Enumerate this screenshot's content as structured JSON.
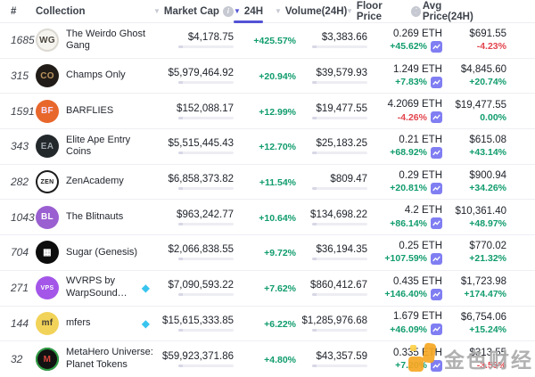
{
  "colors": {
    "positive": "#109c6d",
    "negative": "#e2444d",
    "accent": "#5352d6",
    "spark_background": "#807ef2"
  },
  "table": {
    "columns": [
      {
        "key": "rank",
        "label": "#",
        "sortable": false,
        "info": false,
        "active": false
      },
      {
        "key": "collection",
        "label": "Collection",
        "sortable": false,
        "info": false,
        "active": false
      },
      {
        "key": "market_cap",
        "label": "Market Cap",
        "sortable": true,
        "info": true,
        "active": false
      },
      {
        "key": "h24",
        "label": "24H",
        "sortable": true,
        "info": false,
        "active": true
      },
      {
        "key": "volume",
        "label": "Volume(24H)",
        "sortable": true,
        "info": false,
        "active": false
      },
      {
        "key": "floor",
        "label": "Floor Price",
        "sortable": true,
        "info": true,
        "active": false
      },
      {
        "key": "avg",
        "label": "Avg Price(24H)",
        "sortable": true,
        "info": false,
        "active": false
      }
    ],
    "rows": [
      {
        "rank": "1685",
        "name": "The Weirdo Ghost Gang",
        "diamond": false,
        "icon": {
          "text": "WG",
          "bg": "#f6f4ef",
          "fg": "#4a463f",
          "border": "#dcd9d2",
          "small": false
        },
        "market_cap": "$4,178.75",
        "change_24h": "+425.57%",
        "volume": "$3,383.66",
        "floor_price": "0.269 ETH",
        "floor_change": "+45.62%",
        "avg_price": "$691.55",
        "avg_change": "-4.23%"
      },
      {
        "rank": "315",
        "name": "Champs Only",
        "diamond": false,
        "icon": {
          "text": "CO",
          "bg": "#211c17",
          "fg": "#bb9560",
          "border": "",
          "small": false
        },
        "market_cap": "$5,979,464.92",
        "change_24h": "+20.94%",
        "volume": "$39,579.93",
        "floor_price": "1.249 ETH",
        "floor_change": "+7.83%",
        "avg_price": "$4,845.60",
        "avg_change": "+20.74%"
      },
      {
        "rank": "1591",
        "name": "BARFLIES",
        "diamond": false,
        "icon": {
          "text": "BF",
          "bg": "#e8672c",
          "fg": "#f4e2ff",
          "border": "",
          "small": false
        },
        "market_cap": "$152,088.17",
        "change_24h": "+12.99%",
        "volume": "$19,477.55",
        "floor_price": "4.2069 ETH",
        "floor_change": "-4.26%",
        "avg_price": "$19,477.55",
        "avg_change": "0.00%"
      },
      {
        "rank": "343",
        "name": "Elite Ape Entry Coins",
        "diamond": false,
        "icon": {
          "text": "EA",
          "bg": "#23282b",
          "fg": "#9fa8ad",
          "border": "",
          "small": false
        },
        "market_cap": "$5,515,445.43",
        "change_24h": "+12.70%",
        "volume": "$25,183.25",
        "floor_price": "0.21 ETH",
        "floor_change": "+68.92%",
        "avg_price": "$615.08",
        "avg_change": "+43.14%"
      },
      {
        "rank": "282",
        "name": "ZenAcademy",
        "diamond": false,
        "icon": {
          "text": "ZEN",
          "bg": "#ffffff",
          "fg": "#1c1c1c",
          "border": "#1c1c1c",
          "small": true
        },
        "market_cap": "$6,858,373.82",
        "change_24h": "+11.54%",
        "volume": "$809.47",
        "floor_price": "0.29 ETH",
        "floor_change": "+20.81%",
        "avg_price": "$900.94",
        "avg_change": "+34.26%"
      },
      {
        "rank": "1043",
        "name": "The Blitnauts",
        "diamond": false,
        "icon": {
          "text": "BL",
          "bg": "#9a5fd0",
          "fg": "#ffffff",
          "border": "",
          "small": false
        },
        "market_cap": "$963,242.77",
        "change_24h": "+10.64%",
        "volume": "$134,698.22",
        "floor_price": "4.2 ETH",
        "floor_change": "+86.14%",
        "avg_price": "$10,361.40",
        "avg_change": "+48.97%"
      },
      {
        "rank": "704",
        "name": "Sugar (Genesis)",
        "diamond": false,
        "icon": {
          "text": "▦",
          "bg": "#0d0d0d",
          "fg": "#ffffff",
          "border": "",
          "small": false
        },
        "market_cap": "$2,066,838.55",
        "change_24h": "+9.72%",
        "volume": "$36,194.35",
        "floor_price": "0.25 ETH",
        "floor_change": "+107.59%",
        "avg_price": "$770.02",
        "avg_change": "+21.32%"
      },
      {
        "rank": "271",
        "name": "WVRPS by WarpSound…",
        "diamond": true,
        "icon": {
          "text": "VPS",
          "bg": "#a356e8",
          "fg": "#ffffff",
          "border": "",
          "small": true
        },
        "market_cap": "$7,090,593.22",
        "change_24h": "+7.62%",
        "volume": "$860,412.67",
        "floor_price": "0.435 ETH",
        "floor_change": "+146.40%",
        "avg_price": "$1,723.98",
        "avg_change": "+174.47%"
      },
      {
        "rank": "144",
        "name": "mfers",
        "diamond": true,
        "icon": {
          "text": "mf",
          "bg": "#f2d359",
          "fg": "#454033",
          "border": "",
          "small": false
        },
        "market_cap": "$15,615,333.85",
        "change_24h": "+6.22%",
        "volume": "$1,285,976.68",
        "floor_price": "1.679 ETH",
        "floor_change": "+46.09%",
        "avg_price": "$6,754.06",
        "avg_change": "+15.24%"
      },
      {
        "rank": "32",
        "name": "MetaHero Universe: Planet Tokens",
        "diamond": false,
        "icon": {
          "text": "M",
          "bg": "#121212",
          "fg": "#d8453c",
          "border": "#2f9e44",
          "small": false
        },
        "market_cap": "$59,923,371.86",
        "change_24h": "+4.80%",
        "volume": "$43,357.59",
        "floor_price": "0.335 ETH",
        "floor_change": "+7.20%",
        "avg_price": "$313.55",
        "avg_change": "-3.55%"
      }
    ]
  },
  "watermark": {
    "text": "金色财经"
  }
}
